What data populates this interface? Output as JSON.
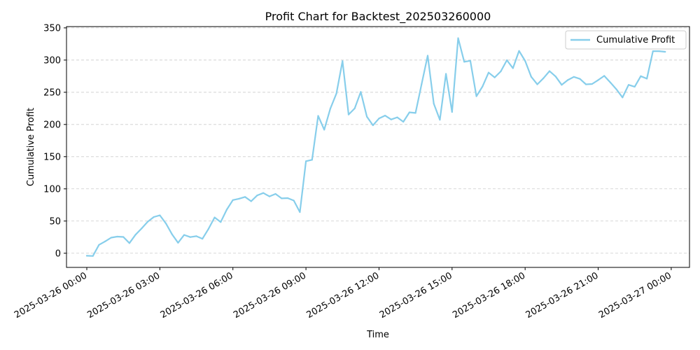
{
  "chart_data": {
    "type": "line",
    "title": "Profit Chart for Backtest_202503260000",
    "xlabel": "Time",
    "ylabel": "Cumulative Profit",
    "ylim": [
      -22,
      352
    ],
    "xlim": [
      "2025-03-25 23:10",
      "2025-03-27 00:45"
    ],
    "yticks": [
      0,
      50,
      100,
      150,
      200,
      250,
      300,
      350
    ],
    "xticks": [
      "2025-03-26 00:00",
      "2025-03-26 03:00",
      "2025-03-26 06:00",
      "2025-03-26 09:00",
      "2025-03-26 12:00",
      "2025-03-26 15:00",
      "2025-03-26 18:00",
      "2025-03-26 21:00",
      "2025-03-27 00:00"
    ],
    "grid": "y-dashed",
    "legend_position": "upper right",
    "series": [
      {
        "name": "Cumulative Profit",
        "color": "#87ceeb",
        "x": [
          "2025-03-26 00:00",
          "2025-03-26 00:15",
          "2025-03-26 00:30",
          "2025-03-26 00:45",
          "2025-03-26 01:00",
          "2025-03-26 01:15",
          "2025-03-26 01:30",
          "2025-03-26 01:45",
          "2025-03-26 02:00",
          "2025-03-26 02:15",
          "2025-03-26 02:30",
          "2025-03-26 02:45",
          "2025-03-26 03:00",
          "2025-03-26 03:15",
          "2025-03-26 03:30",
          "2025-03-26 03:45",
          "2025-03-26 04:00",
          "2025-03-26 04:15",
          "2025-03-26 04:30",
          "2025-03-26 04:45",
          "2025-03-26 05:00",
          "2025-03-26 05:15",
          "2025-03-26 05:30",
          "2025-03-26 05:45",
          "2025-03-26 06:00",
          "2025-03-26 06:15",
          "2025-03-26 06:30",
          "2025-03-26 06:45",
          "2025-03-26 07:00",
          "2025-03-26 07:15",
          "2025-03-26 07:30",
          "2025-03-26 07:45",
          "2025-03-26 08:00",
          "2025-03-26 08:15",
          "2025-03-26 08:30",
          "2025-03-26 08:45",
          "2025-03-26 09:00",
          "2025-03-26 09:15",
          "2025-03-26 09:30",
          "2025-03-26 09:45",
          "2025-03-26 10:00",
          "2025-03-26 10:15",
          "2025-03-26 10:30",
          "2025-03-26 10:45",
          "2025-03-26 11:00",
          "2025-03-26 11:15",
          "2025-03-26 11:30",
          "2025-03-26 11:45",
          "2025-03-26 12:00",
          "2025-03-26 12:15",
          "2025-03-26 12:30",
          "2025-03-26 12:45",
          "2025-03-26 13:00",
          "2025-03-26 13:15",
          "2025-03-26 13:30",
          "2025-03-26 13:45",
          "2025-03-26 14:00",
          "2025-03-26 14:15",
          "2025-03-26 14:30",
          "2025-03-26 14:45",
          "2025-03-26 15:00",
          "2025-03-26 15:15",
          "2025-03-26 15:30",
          "2025-03-26 15:45",
          "2025-03-26 16:00",
          "2025-03-26 16:15",
          "2025-03-26 16:30",
          "2025-03-26 16:45",
          "2025-03-26 17:00",
          "2025-03-26 17:15",
          "2025-03-26 17:30",
          "2025-03-26 17:45",
          "2025-03-26 18:00",
          "2025-03-26 18:15",
          "2025-03-26 18:30",
          "2025-03-26 18:45",
          "2025-03-26 19:00",
          "2025-03-26 19:15",
          "2025-03-26 19:30",
          "2025-03-26 19:45",
          "2025-03-26 20:00",
          "2025-03-26 20:15",
          "2025-03-26 20:30",
          "2025-03-26 20:45",
          "2025-03-26 21:00",
          "2025-03-26 21:15",
          "2025-03-26 21:30",
          "2025-03-26 21:45",
          "2025-03-26 22:00",
          "2025-03-26 22:15",
          "2025-03-26 22:30",
          "2025-03-26 22:45",
          "2025-03-26 23:00",
          "2025-03-26 23:15",
          "2025-03-26 23:30",
          "2025-03-26 23:45"
        ],
        "y": [
          -3.9,
          -4.3,
          13.0,
          18.3,
          24.2,
          25.8,
          25.3,
          15.7,
          28.8,
          38.5,
          48.9,
          56.3,
          58.9,
          46.2,
          29.5,
          16.3,
          28.5,
          25.1,
          26.5,
          22.5,
          37.9,
          55.6,
          48.4,
          67.8,
          82.6,
          84.7,
          87.5,
          80.7,
          89.9,
          93.6,
          88.2,
          92.2,
          85.2,
          85.6,
          81.8,
          63.9,
          142.9,
          145.1,
          213.4,
          191.9,
          224.6,
          248.1,
          298.5,
          215.5,
          224.9,
          250.6,
          212.2,
          198.7,
          209.2,
          213.8,
          207.7,
          211.1,
          204.1,
          218.8,
          217.8,
          262.6,
          306.9,
          232.3,
          207.3,
          278.6,
          219.4,
          334.1,
          297.3,
          298.9,
          243.8,
          258.9,
          280.6,
          273.1,
          282.4,
          299.8,
          287.4,
          314.3,
          298.7,
          274.1,
          262.3,
          271.8,
          282.8,
          274.6,
          261.5,
          268.9,
          273.9,
          270.8,
          262.3,
          262.8,
          268.9,
          275.5,
          265.2,
          254.6,
          242.0,
          261.5,
          258.6,
          275.0,
          271.1,
          313.8,
          313.8,
          312.9
        ]
      }
    ]
  }
}
